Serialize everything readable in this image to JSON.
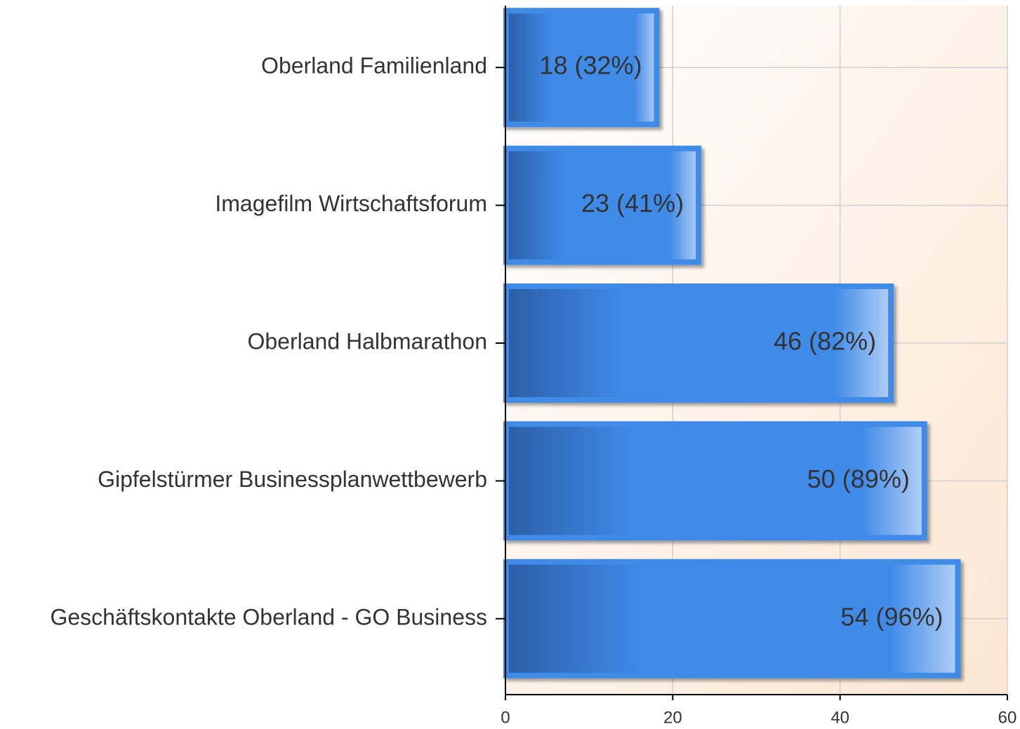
{
  "chart_data": {
    "type": "bar",
    "orientation": "horizontal",
    "categories": [
      "Oberland Familienland",
      "Imagefilm Wirtschaftsforum",
      "Oberland Halbmarathon",
      "Gipfelstürmer Businessplanwettbewerb",
      "Geschäftskontakte Oberland - GO Business"
    ],
    "values": [
      18,
      23,
      46,
      50,
      54
    ],
    "value_labels": [
      "18 (32%)",
      "23 (41%)",
      "46 (82%)",
      "50 (89%)",
      "54 (96%)"
    ],
    "color": "#3f8ae8",
    "xlim": [
      0,
      60
    ],
    "xticks": [
      0,
      20,
      40,
      60
    ],
    "grid": true
  }
}
